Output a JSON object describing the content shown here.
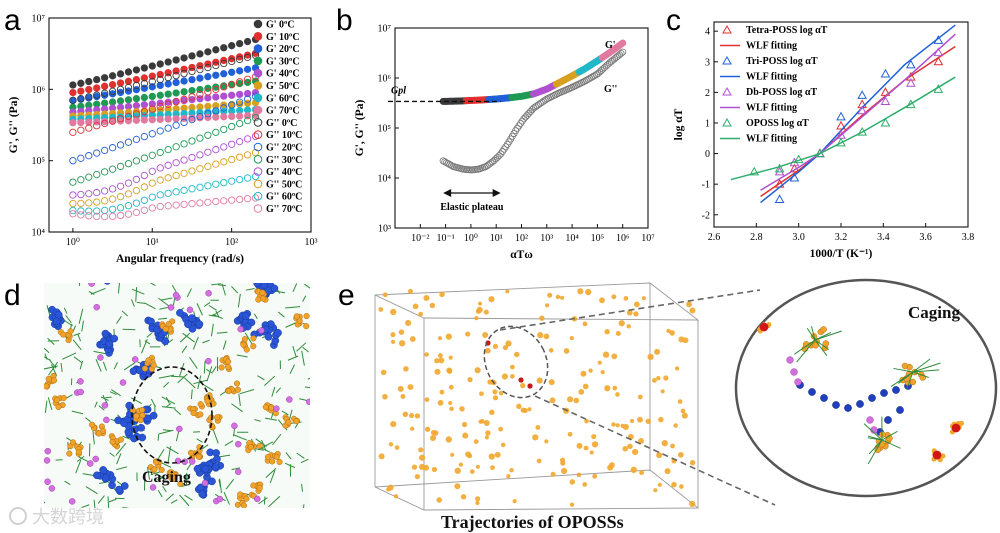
{
  "panel_labels": {
    "a": "a",
    "b": "b",
    "c": "c",
    "d": "d",
    "e": "e"
  },
  "panel_d": {
    "caging_label": "Caging"
  },
  "panel_e": {
    "caging_label": "Caging",
    "caption": "Trajectories of OPOSSs"
  },
  "watermark": "大数跨境",
  "chart_data": [
    {
      "type": "scatter",
      "id": "a",
      "xlabel": "Angular frequency (rad/s)",
      "ylabel": "G', G'' (Pa)",
      "xscale": "log",
      "yscale": "log",
      "xlim": [
        0.5,
        1000
      ],
      "ylim": [
        10000,
        10000000
      ],
      "xticks": [
        {
          "v": 1,
          "t": "10⁰"
        },
        {
          "v": 10,
          "t": "10¹"
        },
        {
          "v": 100,
          "t": "10²"
        },
        {
          "v": 1000,
          "t": "10³"
        }
      ],
      "yticks": [
        {
          "v": 10000,
          "t": "10⁴"
        },
        {
          "v": 100000,
          "t": "10⁵"
        },
        {
          "v": 1000000,
          "t": "10⁶"
        },
        {
          "v": 10000000,
          "t": "10⁷"
        }
      ],
      "x_range": [
        1,
        200
      ],
      "n_points": 24,
      "legend_position": "right",
      "series": [
        {
          "name": "G'   0ºC",
          "filled": true,
          "color": "#3a3a3a",
          "y_start": 1150000,
          "y_end": 5000000
        },
        {
          "name": "G'  10ºC",
          "filled": true,
          "color": "#e03030",
          "y_start": 900000,
          "y_end": 3200000
        },
        {
          "name": "G'  20ºC",
          "filled": true,
          "color": "#2060d8",
          "y_start": 700000,
          "y_end": 2000000
        },
        {
          "name": "G'  30ºC",
          "filled": true,
          "color": "#1f9a55",
          "y_start": 560000,
          "y_end": 1300000
        },
        {
          "name": "G'  40ºC",
          "filled": true,
          "color": "#b050d0",
          "y_start": 480000,
          "y_end": 900000
        },
        {
          "name": "G'  50ºC",
          "filled": true,
          "color": "#d8a020",
          "y_start": 420000,
          "y_end": 650000
        },
        {
          "name": "G'  60ºC",
          "filled": true,
          "color": "#20b8c8",
          "y_start": 380000,
          "y_end": 520000
        },
        {
          "name": "G'  70ºC",
          "filled": true,
          "color": "#e07aa0",
          "y_start": 340000,
          "y_end": 430000
        },
        {
          "name": "G''  0ºC",
          "filled": false,
          "color": "#3a3a3a",
          "y_start": 700000,
          "y_end": 3000000
        },
        {
          "name": "G'' 10ºC",
          "filled": false,
          "color": "#e03030",
          "y_start": 250000,
          "y_end": 1500000
        },
        {
          "name": "G'' 20ºC",
          "filled": false,
          "color": "#2060d8",
          "y_start": 100000,
          "y_end": 800000
        },
        {
          "name": "G'' 30ºC",
          "filled": false,
          "color": "#1f9a55",
          "y_start": 50000,
          "y_end": 400000
        },
        {
          "name": "G'' 40ºC",
          "filled": false,
          "color": "#b050d0",
          "y_start": 33000,
          "y_end": 220000
        },
        {
          "name": "G'' 50ºC",
          "filled": false,
          "color": "#d8a020",
          "y_start": 25000,
          "y_end": 130000
        },
        {
          "name": "G'' 60ºC",
          "filled": false,
          "color": "#20b8c8",
          "y_start": 20000,
          "y_end": 60000
        },
        {
          "name": "G'' 70ºC",
          "filled": false,
          "color": "#e07aa0",
          "y_start": 18000,
          "y_end": 30000
        }
      ]
    },
    {
      "type": "scatter",
      "id": "b",
      "xlabel": "αTω",
      "ylabel": "G', G'' (Pa)",
      "xscale": "log",
      "yscale": "log",
      "xlim": [
        0.001,
        10000000
      ],
      "ylim": [
        1000,
        10000000
      ],
      "xticks": [
        {
          "v": 0.01,
          "t": "10⁻²"
        },
        {
          "v": 0.1,
          "t": "10⁻¹"
        },
        {
          "v": 1,
          "t": "10⁰"
        },
        {
          "v": 10,
          "t": "10¹"
        },
        {
          "v": 100,
          "t": "10²"
        },
        {
          "v": 1000,
          "t": "10³"
        },
        {
          "v": 10000,
          "t": "10⁴"
        },
        {
          "v": 100000,
          "t": "10⁵"
        },
        {
          "v": 1000000,
          "t": "10⁶"
        },
        {
          "v": 10000000,
          "t": "10⁷"
        }
      ],
      "yticks": [
        {
          "v": 1000,
          "t": "10³"
        },
        {
          "v": 10000,
          "t": "10⁴"
        },
        {
          "v": 100000,
          "t": "10⁵"
        },
        {
          "v": 1000000,
          "t": "10⁶"
        },
        {
          "v": 10000000,
          "t": "10⁷"
        }
      ],
      "series": [
        {
          "name": "G'",
          "filled": true,
          "x": [
            0.08,
            0.3,
            1,
            3,
            10,
            30,
            100,
            300,
            1000,
            3000,
            10000,
            30000,
            100000,
            300000,
            1000000
          ],
          "y": [
            340000,
            345000,
            355000,
            365000,
            380000,
            400000,
            430000,
            480000,
            600000,
            800000,
            1100000,
            1500000,
            2200000,
            3200000,
            5000000
          ]
        },
        {
          "name": "G''",
          "filled": false,
          "x": [
            0.08,
            0.2,
            0.5,
            1,
            2,
            4,
            8,
            15,
            30,
            60,
            120,
            300,
            1000,
            3000,
            10000,
            30000,
            100000,
            300000,
            1000000
          ],
          "y": [
            22000,
            17000,
            15000,
            14500,
            15000,
            17000,
            22000,
            30000,
            50000,
            90000,
            150000,
            250000,
            380000,
            500000,
            650000,
            850000,
            1200000,
            2000000,
            3300000
          ]
        }
      ],
      "annotations": {
        "gpl": "Gpl",
        "elastic_plateau": "Elastic plateau",
        "gprime": "G'",
        "gdouble": "G''"
      },
      "gpl_value": 340000,
      "plateau_range": [
        0.08,
        15
      ]
    },
    {
      "type": "scatter",
      "id": "c",
      "xlabel": "1000/T (K⁻¹)",
      "ylabel": "log αT",
      "xlim": [
        2.6,
        3.8
      ],
      "ylim": [
        -2.4,
        4.3
      ],
      "xticks": [
        {
          "v": 2.6,
          "t": "2.6"
        },
        {
          "v": 2.8,
          "t": "2.8"
        },
        {
          "v": 3.0,
          "t": "3.0"
        },
        {
          "v": 3.2,
          "t": "3.2"
        },
        {
          "v": 3.4,
          "t": "3.4"
        },
        {
          "v": 3.6,
          "t": "3.6"
        },
        {
          "v": 3.8,
          "t": "3.8"
        }
      ],
      "yticks": [
        {
          "v": -2,
          "t": "-2"
        },
        {
          "v": -1,
          "t": "-1"
        },
        {
          "v": 0,
          "t": "0"
        },
        {
          "v": 1,
          "t": "1"
        },
        {
          "v": 2,
          "t": "2"
        },
        {
          "v": 3,
          "t": "3"
        },
        {
          "v": 4,
          "t": "4"
        }
      ],
      "legend_position": "top-left",
      "series": [
        {
          "name": "Tetra-POSS log αT",
          "color": "#e03030",
          "fit_name": "WLF fitting",
          "x": [
            2.91,
            2.98,
            3.1,
            3.2,
            3.3,
            3.41,
            3.53,
            3.66
          ],
          "y": [
            -1.0,
            -0.5,
            0,
            0.9,
            1.6,
            2.0,
            2.5,
            3.0
          ],
          "fit": [
            [
              2.82,
              -1.4
            ],
            [
              3.0,
              -0.55
            ],
            [
              3.1,
              0
            ],
            [
              3.3,
              1.25
            ],
            [
              3.5,
              2.4
            ],
            [
              3.74,
              3.5
            ]
          ]
        },
        {
          "name": "Tri-POSS log αT",
          "color": "#2060d8",
          "fit_name": "WLF fitting",
          "x": [
            2.91,
            2.98,
            3.1,
            3.2,
            3.3,
            3.41,
            3.53,
            3.66
          ],
          "y": [
            -1.5,
            -0.8,
            0,
            1.2,
            1.9,
            2.6,
            2.9,
            3.7
          ],
          "fit": [
            [
              2.82,
              -1.6
            ],
            [
              3.0,
              -0.6
            ],
            [
              3.1,
              0
            ],
            [
              3.3,
              1.5
            ],
            [
              3.5,
              2.9
            ],
            [
              3.74,
              4.2
            ]
          ]
        },
        {
          "name": "Db-POSS log αT",
          "color": "#b050d0",
          "fit_name": "WLF fitting",
          "x": [
            2.91,
            2.98,
            3.1,
            3.2,
            3.3,
            3.41,
            3.53,
            3.66
          ],
          "y": [
            -0.6,
            -0.3,
            0,
            0.6,
            1.4,
            1.7,
            2.3,
            3.3
          ],
          "fit": [
            [
              2.82,
              -1.2
            ],
            [
              3.0,
              -0.45
            ],
            [
              3.1,
              0
            ],
            [
              3.3,
              1.2
            ],
            [
              3.5,
              2.4
            ],
            [
              3.74,
              3.9
            ]
          ]
        },
        {
          "name": "OPOSS log αT",
          "color": "#2cae6a",
          "fit_name": "WLF fitting",
          "x": [
            2.79,
            2.91,
            3.0,
            3.1,
            3.2,
            3.3,
            3.41,
            3.53,
            3.66
          ],
          "y": [
            -0.6,
            -0.5,
            -0.2,
            0,
            0.35,
            0.7,
            1.0,
            1.6,
            2.1
          ],
          "fit": [
            [
              2.68,
              -0.85
            ],
            [
              2.9,
              -0.45
            ],
            [
              3.1,
              0
            ],
            [
              3.3,
              0.7
            ],
            [
              3.5,
              1.5
            ],
            [
              3.74,
              2.5
            ]
          ]
        }
      ]
    }
  ]
}
